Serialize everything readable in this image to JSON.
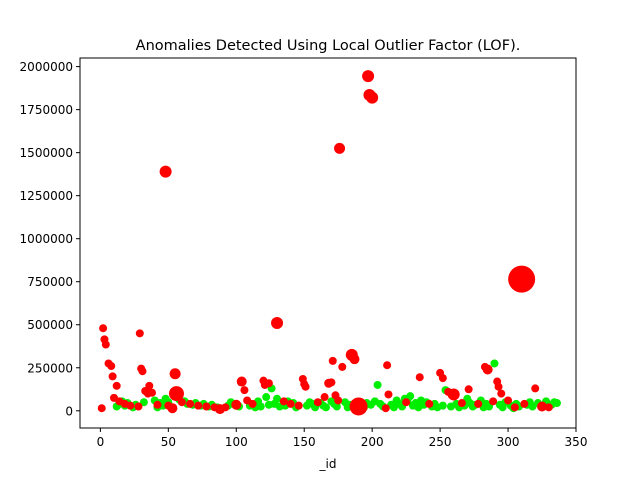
{
  "chart_data": {
    "type": "scatter",
    "title": "Anomalies Detected Using Local Outlier Factor (LOF).",
    "xlabel": "_id",
    "ylabel": "",
    "xlim": [
      -15,
      350
    ],
    "ylim": [
      -100000,
      2050000
    ],
    "xticks": [
      0,
      50,
      100,
      150,
      200,
      250,
      300,
      350
    ],
    "yticks": [
      0,
      250000,
      500000,
      750000,
      1000000,
      1250000,
      1500000,
      1750000,
      2000000
    ],
    "grid": false,
    "legend": "none",
    "colors": {
      "outlier": "#ff0000",
      "inlier": "#00ee00"
    },
    "series": [
      {
        "role": "outlier",
        "points": [
          {
            "x": 1,
            "y": 15000,
            "s": 4
          },
          {
            "x": 2,
            "y": 480000,
            "s": 4
          },
          {
            "x": 3,
            "y": 415000,
            "s": 4
          },
          {
            "x": 4,
            "y": 385000,
            "s": 4
          },
          {
            "x": 6,
            "y": 275000,
            "s": 4
          },
          {
            "x": 8,
            "y": 260000,
            "s": 4
          },
          {
            "x": 9,
            "y": 200000,
            "s": 4
          },
          {
            "x": 10,
            "y": 75000,
            "s": 4
          },
          {
            "x": 12,
            "y": 145000,
            "s": 4
          },
          {
            "x": 14,
            "y": 55000,
            "s": 4
          },
          {
            "x": 18,
            "y": 40000,
            "s": 4
          },
          {
            "x": 22,
            "y": 30000,
            "s": 4
          },
          {
            "x": 28,
            "y": 25000,
            "s": 4
          },
          {
            "x": 29,
            "y": 450000,
            "s": 4
          },
          {
            "x": 30,
            "y": 245000,
            "s": 4
          },
          {
            "x": 31,
            "y": 230000,
            "s": 4
          },
          {
            "x": 33,
            "y": 115000,
            "s": 4
          },
          {
            "x": 35,
            "y": 100000,
            "s": 4
          },
          {
            "x": 36,
            "y": 145000,
            "s": 4
          },
          {
            "x": 38,
            "y": 105000,
            "s": 4
          },
          {
            "x": 42,
            "y": 35000,
            "s": 4
          },
          {
            "x": 48,
            "y": 1390000,
            "s": 6
          },
          {
            "x": 50,
            "y": 30000,
            "s": 4
          },
          {
            "x": 53,
            "y": 15000,
            "s": 5
          },
          {
            "x": 55,
            "y": 215000,
            "s": 5.5
          },
          {
            "x": 56,
            "y": 100000,
            "s": 7.5
          },
          {
            "x": 60,
            "y": 50000,
            "s": 4
          },
          {
            "x": 66,
            "y": 40000,
            "s": 4
          },
          {
            "x": 72,
            "y": 30000,
            "s": 4
          },
          {
            "x": 78,
            "y": 25000,
            "s": 4
          },
          {
            "x": 84,
            "y": 20000,
            "s": 4
          },
          {
            "x": 88,
            "y": 10000,
            "s": 5
          },
          {
            "x": 92,
            "y": 20000,
            "s": 4
          },
          {
            "x": 100,
            "y": 35000,
            "s": 5
          },
          {
            "x": 104,
            "y": 170000,
            "s": 5
          },
          {
            "x": 106,
            "y": 120000,
            "s": 4
          },
          {
            "x": 108,
            "y": 60000,
            "s": 4
          },
          {
            "x": 112,
            "y": 40000,
            "s": 4
          },
          {
            "x": 120,
            "y": 175000,
            "s": 4
          },
          {
            "x": 121,
            "y": 150000,
            "s": 4
          },
          {
            "x": 124,
            "y": 160000,
            "s": 4
          },
          {
            "x": 130,
            "y": 510000,
            "s": 6
          },
          {
            "x": 135,
            "y": 55000,
            "s": 4
          },
          {
            "x": 140,
            "y": 40000,
            "s": 4
          },
          {
            "x": 146,
            "y": 30000,
            "s": 4
          },
          {
            "x": 149,
            "y": 185000,
            "s": 4
          },
          {
            "x": 150,
            "y": 155000,
            "s": 4
          },
          {
            "x": 151,
            "y": 140000,
            "s": 4
          },
          {
            "x": 160,
            "y": 50000,
            "s": 4
          },
          {
            "x": 165,
            "y": 80000,
            "s": 4
          },
          {
            "x": 168,
            "y": 160000,
            "s": 4.5
          },
          {
            "x": 170,
            "y": 165000,
            "s": 4
          },
          {
            "x": 171,
            "y": 290000,
            "s": 4
          },
          {
            "x": 173,
            "y": 90000,
            "s": 4
          },
          {
            "x": 175,
            "y": 60000,
            "s": 4
          },
          {
            "x": 176,
            "y": 1525000,
            "s": 5.5
          },
          {
            "x": 178,
            "y": 255000,
            "s": 4
          },
          {
            "x": 185,
            "y": 325000,
            "s": 6
          },
          {
            "x": 187,
            "y": 300000,
            "s": 5
          },
          {
            "x": 190,
            "y": 25000,
            "s": 9
          },
          {
            "x": 197,
            "y": 1945000,
            "s": 6
          },
          {
            "x": 198,
            "y": 1835000,
            "s": 6
          },
          {
            "x": 200,
            "y": 1820000,
            "s": 6
          },
          {
            "x": 210,
            "y": 15000,
            "s": 4
          },
          {
            "x": 211,
            "y": 265000,
            "s": 4
          },
          {
            "x": 212,
            "y": 95000,
            "s": 4
          },
          {
            "x": 225,
            "y": 50000,
            "s": 4
          },
          {
            "x": 235,
            "y": 195000,
            "s": 4
          },
          {
            "x": 242,
            "y": 40000,
            "s": 4
          },
          {
            "x": 250,
            "y": 220000,
            "s": 4
          },
          {
            "x": 252,
            "y": 190000,
            "s": 4
          },
          {
            "x": 256,
            "y": 110000,
            "s": 4
          },
          {
            "x": 260,
            "y": 95000,
            "s": 6
          },
          {
            "x": 266,
            "y": 45000,
            "s": 4
          },
          {
            "x": 271,
            "y": 125000,
            "s": 4
          },
          {
            "x": 278,
            "y": 40000,
            "s": 4
          },
          {
            "x": 283,
            "y": 255000,
            "s": 4
          },
          {
            "x": 285,
            "y": 240000,
            "s": 5
          },
          {
            "x": 289,
            "y": 55000,
            "s": 4
          },
          {
            "x": 292,
            "y": 170000,
            "s": 4
          },
          {
            "x": 293,
            "y": 140000,
            "s": 4
          },
          {
            "x": 295,
            "y": 100000,
            "s": 4
          },
          {
            "x": 300,
            "y": 60000,
            "s": 4
          },
          {
            "x": 305,
            "y": 20000,
            "s": 4
          },
          {
            "x": 310,
            "y": 765000,
            "s": 13.5
          },
          {
            "x": 312,
            "y": 40000,
            "s": 4
          },
          {
            "x": 320,
            "y": 130000,
            "s": 4
          },
          {
            "x": 325,
            "y": 25000,
            "s": 5
          },
          {
            "x": 330,
            "y": 20000,
            "s": 4
          }
        ]
      },
      {
        "role": "inlier",
        "points": [
          {
            "x": 12,
            "y": 25000
          },
          {
            "x": 14,
            "y": 40000
          },
          {
            "x": 16,
            "y": 55000
          },
          {
            "x": 18,
            "y": 30000
          },
          {
            "x": 20,
            "y": 45000
          },
          {
            "x": 24,
            "y": 20000
          },
          {
            "x": 26,
            "y": 35000
          },
          {
            "x": 32,
            "y": 50000
          },
          {
            "x": 40,
            "y": 60000
          },
          {
            "x": 42,
            "y": 20000
          },
          {
            "x": 44,
            "y": 45000
          },
          {
            "x": 46,
            "y": 30000
          },
          {
            "x": 48,
            "y": 70000
          },
          {
            "x": 50,
            "y": 50000
          },
          {
            "x": 58,
            "y": 65000
          },
          {
            "x": 62,
            "y": 55000
          },
          {
            "x": 64,
            "y": 40000
          },
          {
            "x": 68,
            "y": 35000
          },
          {
            "x": 70,
            "y": 45000
          },
          {
            "x": 74,
            "y": 30000
          },
          {
            "x": 76,
            "y": 40000
          },
          {
            "x": 80,
            "y": 25000
          },
          {
            "x": 82,
            "y": 35000
          },
          {
            "x": 86,
            "y": 20000
          },
          {
            "x": 94,
            "y": 30000
          },
          {
            "x": 96,
            "y": 50000
          },
          {
            "x": 98,
            "y": 40000
          },
          {
            "x": 102,
            "y": 25000
          },
          {
            "x": 110,
            "y": 30000
          },
          {
            "x": 114,
            "y": 20000
          },
          {
            "x": 116,
            "y": 55000
          },
          {
            "x": 118,
            "y": 25000
          },
          {
            "x": 122,
            "y": 80000
          },
          {
            "x": 124,
            "y": 35000
          },
          {
            "x": 126,
            "y": 130000
          },
          {
            "x": 128,
            "y": 40000
          },
          {
            "x": 130,
            "y": 70000
          },
          {
            "x": 132,
            "y": 25000
          },
          {
            "x": 136,
            "y": 30000
          },
          {
            "x": 138,
            "y": 55000
          },
          {
            "x": 142,
            "y": 45000
          },
          {
            "x": 144,
            "y": 20000
          },
          {
            "x": 152,
            "y": 30000
          },
          {
            "x": 154,
            "y": 50000
          },
          {
            "x": 156,
            "y": 40000
          },
          {
            "x": 158,
            "y": 20000
          },
          {
            "x": 162,
            "y": 45000
          },
          {
            "x": 164,
            "y": 30000
          },
          {
            "x": 166,
            "y": 20000
          },
          {
            "x": 170,
            "y": 55000
          },
          {
            "x": 172,
            "y": 40000
          },
          {
            "x": 174,
            "y": 25000
          },
          {
            "x": 180,
            "y": 50000
          },
          {
            "x": 182,
            "y": 20000
          },
          {
            "x": 184,
            "y": 35000
          },
          {
            "x": 188,
            "y": 15000
          },
          {
            "x": 192,
            "y": 30000
          },
          {
            "x": 194,
            "y": 20000
          },
          {
            "x": 196,
            "y": 45000
          },
          {
            "x": 199,
            "y": 35000
          },
          {
            "x": 202,
            "y": 55000
          },
          {
            "x": 204,
            "y": 150000
          },
          {
            "x": 206,
            "y": 40000
          },
          {
            "x": 208,
            "y": 25000
          },
          {
            "x": 214,
            "y": 35000
          },
          {
            "x": 216,
            "y": 20000
          },
          {
            "x": 218,
            "y": 60000
          },
          {
            "x": 220,
            "y": 40000
          },
          {
            "x": 222,
            "y": 25000
          },
          {
            "x": 224,
            "y": 70000
          },
          {
            "x": 226,
            "y": 55000
          },
          {
            "x": 228,
            "y": 85000
          },
          {
            "x": 230,
            "y": 30000
          },
          {
            "x": 232,
            "y": 45000
          },
          {
            "x": 234,
            "y": 20000
          },
          {
            "x": 236,
            "y": 60000
          },
          {
            "x": 238,
            "y": 35000
          },
          {
            "x": 240,
            "y": 50000
          },
          {
            "x": 244,
            "y": 25000
          },
          {
            "x": 246,
            "y": 40000
          },
          {
            "x": 248,
            "y": 20000
          },
          {
            "x": 252,
            "y": 30000
          },
          {
            "x": 254,
            "y": 120000
          },
          {
            "x": 258,
            "y": 25000
          },
          {
            "x": 262,
            "y": 40000
          },
          {
            "x": 264,
            "y": 20000
          },
          {
            "x": 268,
            "y": 30000
          },
          {
            "x": 270,
            "y": 70000
          },
          {
            "x": 272,
            "y": 45000
          },
          {
            "x": 274,
            "y": 25000
          },
          {
            "x": 276,
            "y": 35000
          },
          {
            "x": 280,
            "y": 60000
          },
          {
            "x": 282,
            "y": 20000
          },
          {
            "x": 284,
            "y": 40000
          },
          {
            "x": 286,
            "y": 25000
          },
          {
            "x": 290,
            "y": 275000
          },
          {
            "x": 294,
            "y": 35000
          },
          {
            "x": 296,
            "y": 20000
          },
          {
            "x": 298,
            "y": 50000
          },
          {
            "x": 302,
            "y": 30000
          },
          {
            "x": 304,
            "y": 15000
          },
          {
            "x": 306,
            "y": 40000
          },
          {
            "x": 308,
            "y": 25000
          },
          {
            "x": 314,
            "y": 35000
          },
          {
            "x": 316,
            "y": 50000
          },
          {
            "x": 318,
            "y": 25000
          },
          {
            "x": 322,
            "y": 45000
          },
          {
            "x": 326,
            "y": 30000
          },
          {
            "x": 328,
            "y": 55000
          },
          {
            "x": 332,
            "y": 35000
          },
          {
            "x": 334,
            "y": 50000
          },
          {
            "x": 336,
            "y": 45000
          }
        ]
      }
    ]
  }
}
